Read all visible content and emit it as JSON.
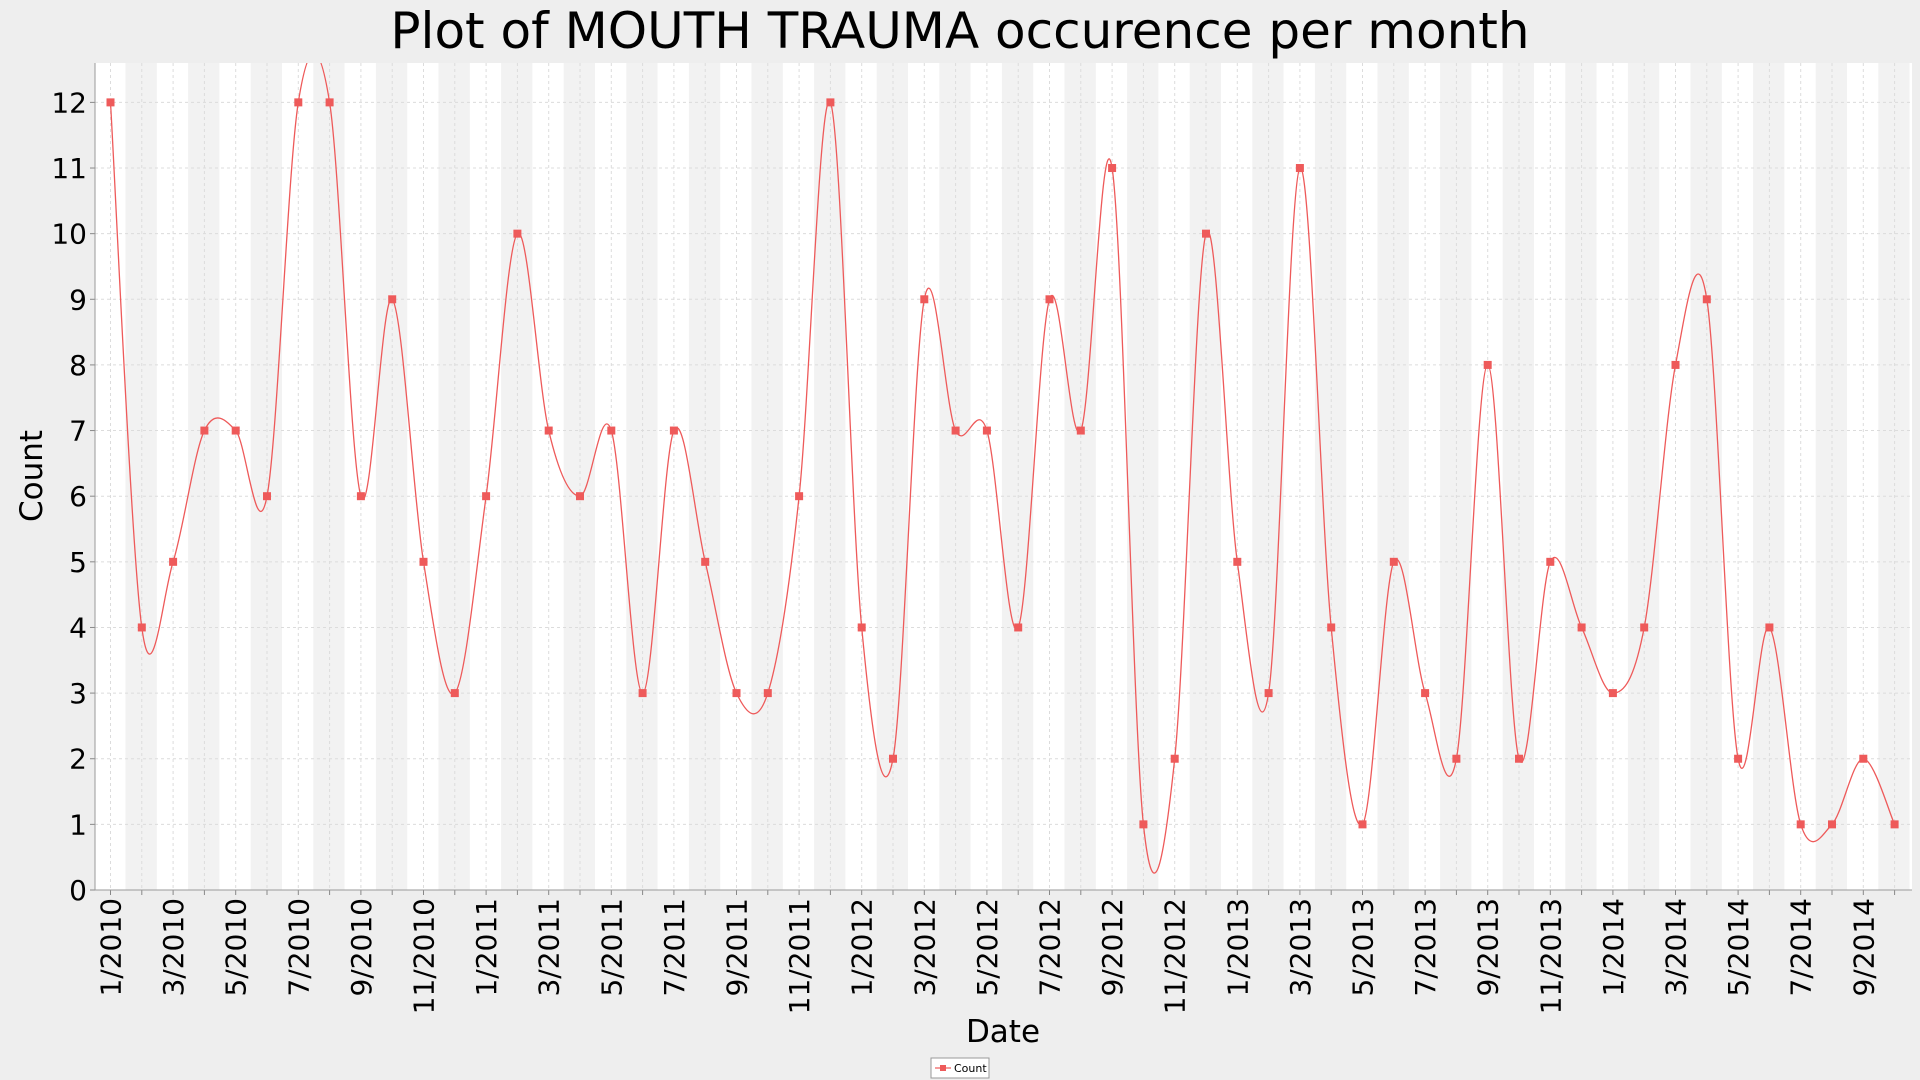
{
  "chart_data": {
    "type": "line",
    "title": "Plot of MOUTH TRAUMA occurence per month",
    "xlabel": "Date",
    "ylabel": "Count",
    "ylim": [
      0,
      12.6
    ],
    "yticks": [
      0,
      1,
      2,
      3,
      4,
      5,
      6,
      7,
      8,
      9,
      10,
      11,
      12
    ],
    "grid": true,
    "smoothed_line": true,
    "legend_position": "bottom-center",
    "x_tick_labels": [
      "1/2010",
      "3/2010",
      "5/2010",
      "7/2010",
      "9/2010",
      "11/2010",
      "1/2011",
      "3/2011",
      "5/2011",
      "7/2011",
      "9/2011",
      "11/2011",
      "1/2012",
      "3/2012",
      "5/2012",
      "7/2012",
      "9/2012",
      "11/2012",
      "1/2013",
      "3/2013",
      "5/2013",
      "7/2013",
      "9/2013",
      "11/2013",
      "1/2014",
      "3/2014",
      "5/2014",
      "7/2014",
      "9/2014"
    ],
    "x": [
      "1/2010",
      "2/2010",
      "3/2010",
      "4/2010",
      "5/2010",
      "6/2010",
      "7/2010",
      "8/2010",
      "9/2010",
      "10/2010",
      "11/2010",
      "12/2010",
      "1/2011",
      "2/2011",
      "3/2011",
      "4/2011",
      "5/2011",
      "6/2011",
      "7/2011",
      "8/2011",
      "9/2011",
      "10/2011",
      "11/2011",
      "12/2011",
      "1/2012",
      "2/2012",
      "3/2012",
      "4/2012",
      "5/2012",
      "6/2012",
      "7/2012",
      "8/2012",
      "9/2012",
      "10/2012",
      "11/2012",
      "12/2012",
      "1/2013",
      "2/2013",
      "3/2013",
      "4/2013",
      "5/2013",
      "6/2013",
      "7/2013",
      "8/2013",
      "9/2013",
      "10/2013",
      "11/2013",
      "12/2013",
      "1/2014",
      "2/2014",
      "3/2014",
      "4/2014",
      "5/2014",
      "6/2014",
      "7/2014",
      "8/2014",
      "9/2014",
      "10/2014"
    ],
    "series": [
      {
        "name": "Count",
        "color": "#ee5a5a",
        "values": [
          12,
          4,
          5,
          7,
          7,
          6,
          12,
          12,
          6,
          9,
          5,
          3,
          6,
          10,
          7,
          6,
          7,
          3,
          7,
          5,
          3,
          3,
          6,
          12,
          4,
          2,
          9,
          7,
          7,
          4,
          9,
          7,
          11,
          1,
          2,
          10,
          5,
          3,
          11,
          4,
          1,
          5,
          3,
          2,
          8,
          2,
          5,
          4,
          3,
          4,
          8,
          9,
          2,
          4,
          1,
          1,
          2,
          1
        ]
      }
    ],
    "colors": {
      "background": "#eeeeee",
      "plot_background": "#ffffff",
      "band": "#f2f2f2",
      "grid": "#dcdcdc",
      "line": "#ee5a5a"
    }
  }
}
